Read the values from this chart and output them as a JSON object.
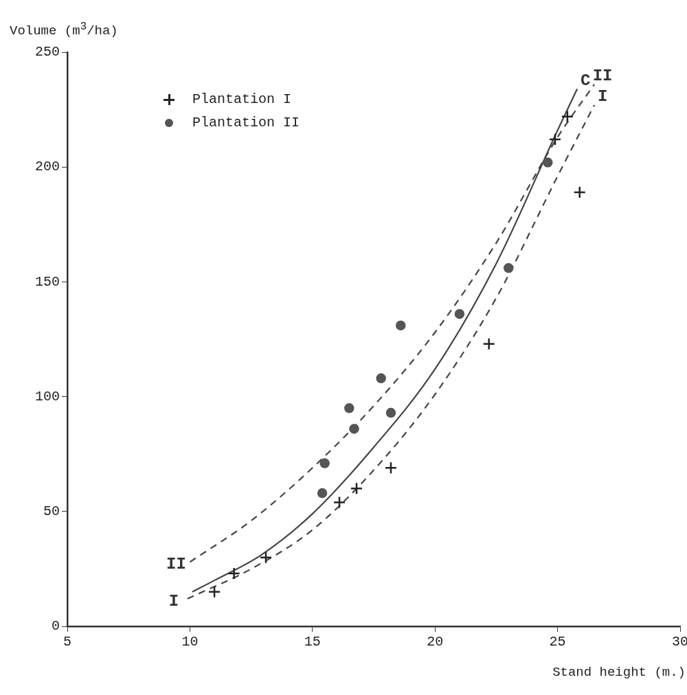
{
  "chart_data": {
    "type": "scatter",
    "xlabel": "Stand height (m.)",
    "ylabel": "Volume (m$^{3}$/ha)",
    "xlim": [
      5,
      30
    ],
    "xticks": [
      5,
      10,
      15,
      20,
      25,
      30
    ],
    "ylim": [
      0,
      250
    ],
    "yticks": [
      0,
      50,
      100,
      150,
      200,
      250
    ],
    "legend": "top left",
    "series": [
      {
        "name": "Plantation I",
        "type": "scatter",
        "marker": "cross",
        "color": "#222222",
        "x": [
          11,
          11.8,
          13.1,
          16.1,
          16.8,
          18.2,
          22.2,
          24.9,
          25.4,
          25.9
        ],
        "values": [
          15,
          23,
          30,
          54,
          60,
          69,
          123,
          212,
          222,
          189
        ]
      },
      {
        "name": "Plantation II",
        "type": "scatter",
        "marker": "circle",
        "color": "#555555",
        "x": [
          15.4,
          15.5,
          16.5,
          16.7,
          17.8,
          18.2,
          18.6,
          21,
          23,
          24.6
        ],
        "values": [
          58,
          71,
          95,
          86,
          108,
          93,
          131,
          136,
          156,
          202
        ]
      },
      {
        "type": "line",
        "line_style": "solid",
        "color": "#444444",
        "x": [
          10.1,
          11,
          12.9,
          15,
          17.5,
          20,
          22.5,
          25,
          25.8
        ],
        "values": [
          15,
          20,
          31,
          49,
          78,
          112,
          158,
          216,
          234
        ]
      },
      {
        "type": "line",
        "line_style": "dashed",
        "color": "#444444",
        "x": [
          10,
          12.5,
          15,
          17.5,
          20,
          22.5,
          25,
          26.5
        ],
        "values": [
          28,
          46,
          69,
          96,
          128,
          167,
          213,
          236
        ]
      },
      {
        "type": "line",
        "line_style": "dashed",
        "color": "#444444",
        "x": [
          9.9,
          12.5,
          15,
          17.5,
          20,
          22.5,
          25,
          26.5
        ],
        "values": [
          12,
          25,
          42,
          68,
          101,
          143,
          196,
          227
        ]
      }
    ],
    "annotations": [
      {
        "text": "II",
        "x": 10,
        "y": 28
      },
      {
        "text": "I",
        "x": 9.9,
        "y": 12
      },
      {
        "text": "C",
        "x": 25.8,
        "y": 234
      },
      {
        "text": "II",
        "x": 26.5,
        "y": 236
      },
      {
        "text": "I",
        "x": 26.5,
        "y": 227
      }
    ]
  }
}
